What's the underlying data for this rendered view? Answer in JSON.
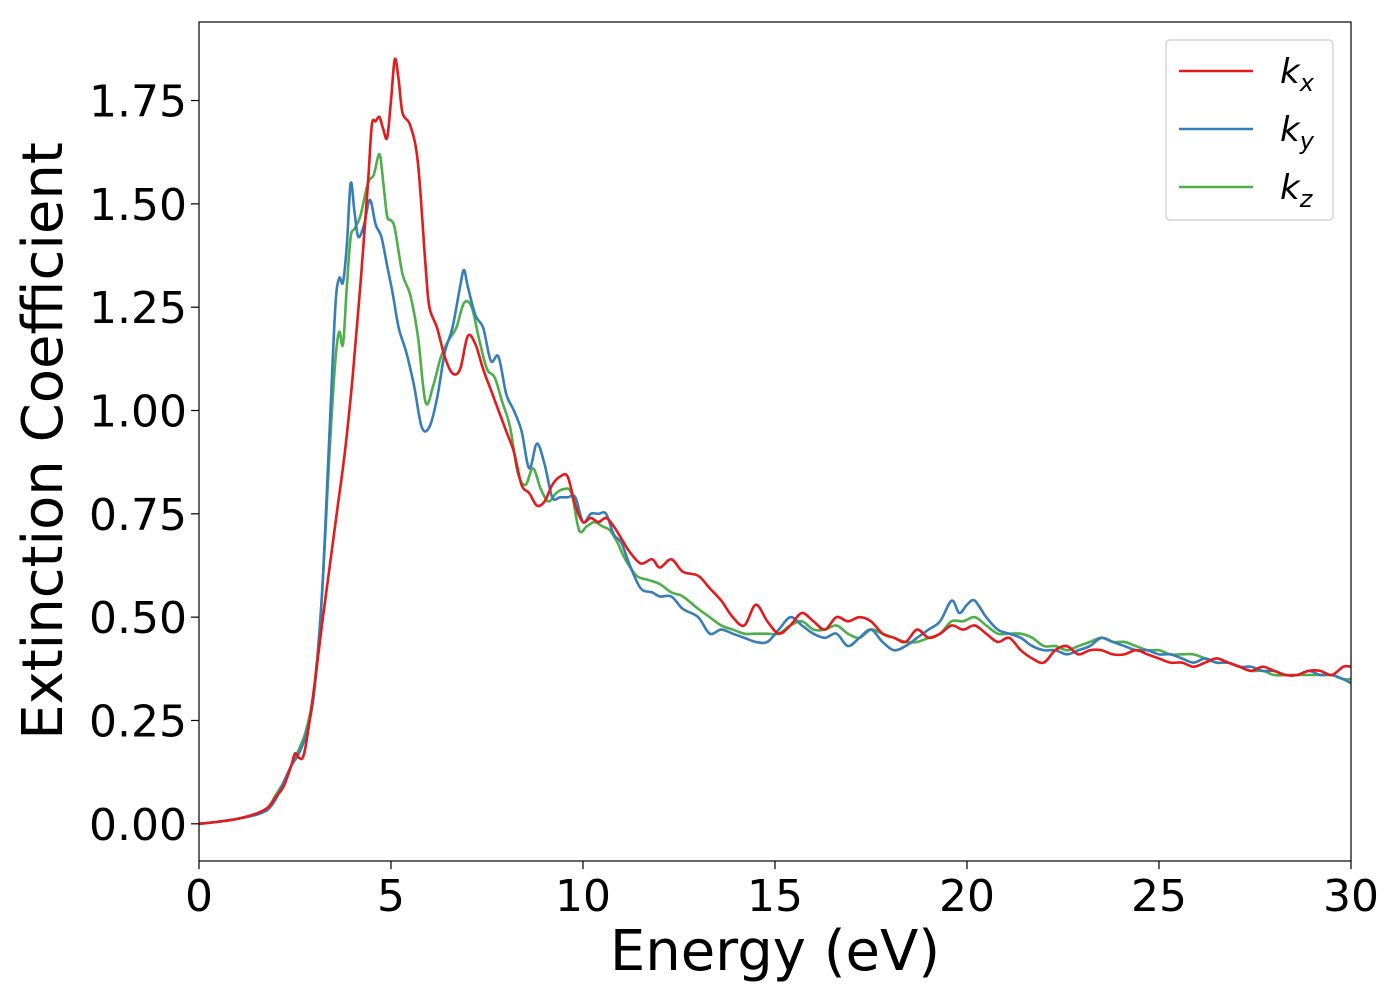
{
  "chart_data": {
    "type": "line",
    "title": "",
    "xlabel": "Energy (eV)",
    "ylabel": "Extinction Coefficient",
    "xlim": [
      0,
      30
    ],
    "ylim": [
      -0.09,
      1.94
    ],
    "xticks": [
      0,
      5,
      10,
      15,
      20,
      25,
      30
    ],
    "xtick_labels": [
      "0",
      "5",
      "10",
      "15",
      "20",
      "25",
      "30"
    ],
    "yticks": [
      0.0,
      0.25,
      0.5,
      0.75,
      1.0,
      1.25,
      1.5,
      1.75
    ],
    "ytick_labels": [
      "0.00",
      "0.25",
      "0.50",
      "0.75",
      "1.00",
      "1.25",
      "1.50",
      "1.75"
    ],
    "grid": false,
    "legend_position": "top-right",
    "series": [
      {
        "name": "k",
        "subscript": "x",
        "color": "#e41a1c",
        "x": [
          0,
          0.5,
          1,
          1.5,
          1.8,
          2.0,
          2.2,
          2.4,
          2.5,
          2.6,
          2.7,
          2.8,
          3.0,
          3.2,
          3.4,
          3.6,
          3.8,
          4.0,
          4.2,
          4.4,
          4.5,
          4.6,
          4.7,
          4.8,
          4.9,
          5.0,
          5.1,
          5.2,
          5.3,
          5.5,
          5.7,
          5.9,
          6.0,
          6.2,
          6.4,
          6.6,
          6.8,
          7.0,
          7.2,
          7.4,
          7.6,
          7.8,
          8.0,
          8.2,
          8.4,
          8.6,
          8.8,
          9.0,
          9.2,
          9.4,
          9.6,
          9.8,
          10.0,
          10.2,
          10.4,
          10.6,
          10.8,
          11.0,
          11.2,
          11.5,
          11.8,
          12.0,
          12.3,
          12.6,
          13.0,
          13.3,
          13.6,
          13.9,
          14.2,
          14.5,
          14.8,
          15.1,
          15.4,
          15.7,
          16.0,
          16.3,
          16.6,
          16.9,
          17.2,
          17.5,
          17.8,
          18.1,
          18.4,
          18.7,
          19.0,
          19.3,
          19.6,
          19.9,
          20.2,
          20.5,
          20.8,
          21.1,
          21.4,
          21.7,
          22.0,
          22.3,
          22.6,
          22.9,
          23.2,
          23.5,
          23.8,
          24.1,
          24.4,
          24.7,
          25.0,
          25.3,
          25.6,
          25.9,
          26.2,
          26.5,
          26.8,
          27.1,
          27.4,
          27.7,
          28.0,
          28.3,
          28.6,
          28.9,
          29.2,
          29.5,
          29.8,
          30.0
        ],
        "y": [
          0.0,
          0.005,
          0.012,
          0.025,
          0.04,
          0.065,
          0.09,
          0.14,
          0.17,
          0.16,
          0.16,
          0.2,
          0.33,
          0.48,
          0.62,
          0.76,
          0.9,
          1.08,
          1.3,
          1.55,
          1.69,
          1.7,
          1.71,
          1.68,
          1.66,
          1.75,
          1.85,
          1.8,
          1.72,
          1.69,
          1.6,
          1.35,
          1.25,
          1.2,
          1.13,
          1.09,
          1.1,
          1.18,
          1.16,
          1.1,
          1.05,
          1.0,
          0.95,
          0.9,
          0.82,
          0.8,
          0.77,
          0.78,
          0.82,
          0.84,
          0.84,
          0.77,
          0.73,
          0.74,
          0.73,
          0.74,
          0.72,
          0.69,
          0.66,
          0.63,
          0.64,
          0.62,
          0.64,
          0.61,
          0.6,
          0.57,
          0.54,
          0.5,
          0.48,
          0.53,
          0.49,
          0.46,
          0.48,
          0.51,
          0.49,
          0.47,
          0.5,
          0.49,
          0.5,
          0.49,
          0.46,
          0.45,
          0.44,
          0.47,
          0.45,
          0.46,
          0.48,
          0.47,
          0.48,
          0.46,
          0.44,
          0.45,
          0.42,
          0.4,
          0.39,
          0.42,
          0.43,
          0.41,
          0.42,
          0.42,
          0.41,
          0.41,
          0.42,
          0.41,
          0.4,
          0.39,
          0.39,
          0.38,
          0.39,
          0.4,
          0.39,
          0.38,
          0.37,
          0.38,
          0.37,
          0.36,
          0.36,
          0.37,
          0.37,
          0.36,
          0.38,
          0.38
        ]
      },
      {
        "name": "k",
        "subscript": "y",
        "color": "#377eb8",
        "x": [
          0,
          0.5,
          1,
          1.5,
          1.8,
          2.0,
          2.2,
          2.4,
          2.6,
          2.8,
          3.0,
          3.2,
          3.4,
          3.55,
          3.65,
          3.75,
          3.85,
          3.95,
          4.05,
          4.15,
          4.3,
          4.45,
          4.6,
          4.75,
          4.9,
          5.05,
          5.2,
          5.4,
          5.6,
          5.8,
          6.0,
          6.2,
          6.4,
          6.6,
          6.8,
          6.9,
          7.0,
          7.2,
          7.4,
          7.6,
          7.8,
          8.0,
          8.2,
          8.4,
          8.6,
          8.8,
          9.0,
          9.2,
          9.4,
          9.6,
          9.8,
          10.0,
          10.2,
          10.4,
          10.6,
          10.8,
          11.0,
          11.2,
          11.5,
          11.8,
          12.0,
          12.3,
          12.6,
          13.0,
          13.3,
          13.6,
          13.9,
          14.2,
          14.5,
          14.8,
          15.1,
          15.4,
          15.7,
          16.0,
          16.3,
          16.6,
          16.9,
          17.2,
          17.5,
          17.8,
          18.1,
          18.4,
          18.7,
          19.0,
          19.3,
          19.6,
          19.8,
          20.0,
          20.2,
          20.5,
          20.8,
          21.1,
          21.4,
          21.7,
          22.0,
          22.3,
          22.6,
          22.9,
          23.2,
          23.5,
          23.8,
          24.1,
          24.4,
          24.7,
          25.0,
          25.3,
          25.6,
          25.9,
          26.2,
          26.5,
          26.8,
          27.1,
          27.4,
          27.7,
          28.0,
          28.3,
          28.6,
          28.9,
          29.2,
          29.5,
          29.8,
          30.0
        ],
        "y": [
          0.0,
          0.005,
          0.012,
          0.022,
          0.035,
          0.06,
          0.1,
          0.14,
          0.17,
          0.22,
          0.32,
          0.55,
          0.95,
          1.25,
          1.32,
          1.31,
          1.4,
          1.55,
          1.48,
          1.42,
          1.45,
          1.51,
          1.45,
          1.42,
          1.35,
          1.28,
          1.2,
          1.14,
          1.06,
          0.96,
          0.96,
          1.03,
          1.14,
          1.2,
          1.3,
          1.34,
          1.3,
          1.23,
          1.2,
          1.12,
          1.13,
          1.04,
          1.0,
          0.95,
          0.86,
          0.92,
          0.87,
          0.79,
          0.79,
          0.79,
          0.79,
          0.73,
          0.75,
          0.75,
          0.75,
          0.7,
          0.68,
          0.63,
          0.57,
          0.56,
          0.55,
          0.55,
          0.52,
          0.5,
          0.46,
          0.47,
          0.46,
          0.45,
          0.44,
          0.44,
          0.47,
          0.5,
          0.48,
          0.46,
          0.45,
          0.46,
          0.43,
          0.45,
          0.47,
          0.44,
          0.42,
          0.43,
          0.45,
          0.47,
          0.49,
          0.54,
          0.51,
          0.53,
          0.54,
          0.5,
          0.47,
          0.46,
          0.45,
          0.43,
          0.42,
          0.42,
          0.41,
          0.42,
          0.43,
          0.45,
          0.44,
          0.43,
          0.42,
          0.42,
          0.41,
          0.41,
          0.4,
          0.39,
          0.4,
          0.39,
          0.39,
          0.38,
          0.38,
          0.37,
          0.37,
          0.36,
          0.36,
          0.37,
          0.36,
          0.36,
          0.35,
          0.34
        ]
      },
      {
        "name": "k",
        "subscript": "z",
        "color": "#4daf4a",
        "x": [
          0,
          0.5,
          1,
          1.5,
          1.8,
          2.0,
          2.2,
          2.4,
          2.6,
          2.8,
          3.0,
          3.2,
          3.4,
          3.55,
          3.65,
          3.75,
          3.85,
          3.95,
          4.05,
          4.2,
          4.4,
          4.55,
          4.7,
          4.8,
          4.9,
          5.0,
          5.1,
          5.3,
          5.5,
          5.7,
          5.9,
          6.1,
          6.3,
          6.5,
          6.7,
          6.9,
          7.1,
          7.3,
          7.5,
          7.7,
          7.9,
          8.1,
          8.3,
          8.5,
          8.7,
          8.9,
          9.1,
          9.3,
          9.5,
          9.7,
          9.9,
          10.1,
          10.3,
          10.5,
          10.7,
          10.9,
          11.1,
          11.4,
          11.7,
          12.0,
          12.3,
          12.6,
          13.0,
          13.3,
          13.6,
          13.9,
          14.2,
          14.5,
          14.8,
          15.1,
          15.4,
          15.7,
          16.0,
          16.3,
          16.6,
          16.9,
          17.2,
          17.5,
          17.8,
          18.1,
          18.4,
          18.7,
          19.0,
          19.3,
          19.6,
          19.9,
          20.2,
          20.5,
          20.8,
          21.1,
          21.4,
          21.7,
          22.0,
          22.3,
          22.6,
          22.9,
          23.2,
          23.5,
          23.8,
          24.1,
          24.4,
          24.7,
          25.0,
          25.3,
          25.6,
          25.9,
          26.2,
          26.5,
          26.8,
          27.1,
          27.4,
          27.7,
          28.0,
          28.3,
          28.6,
          28.9,
          29.2,
          29.5,
          29.8,
          30.0
        ],
        "y": [
          0.0,
          0.005,
          0.012,
          0.024,
          0.04,
          0.07,
          0.1,
          0.14,
          0.18,
          0.23,
          0.33,
          0.55,
          0.9,
          1.12,
          1.19,
          1.16,
          1.3,
          1.42,
          1.44,
          1.47,
          1.55,
          1.57,
          1.62,
          1.55,
          1.47,
          1.46,
          1.44,
          1.33,
          1.28,
          1.18,
          1.02,
          1.06,
          1.13,
          1.17,
          1.2,
          1.26,
          1.25,
          1.17,
          1.1,
          1.08,
          1.02,
          0.96,
          0.85,
          0.82,
          0.86,
          0.81,
          0.78,
          0.8,
          0.81,
          0.8,
          0.71,
          0.72,
          0.73,
          0.72,
          0.71,
          0.68,
          0.64,
          0.6,
          0.59,
          0.58,
          0.56,
          0.55,
          0.52,
          0.5,
          0.48,
          0.47,
          0.46,
          0.46,
          0.46,
          0.46,
          0.48,
          0.49,
          0.47,
          0.47,
          0.48,
          0.46,
          0.45,
          0.47,
          0.46,
          0.45,
          0.44,
          0.44,
          0.45,
          0.46,
          0.49,
          0.49,
          0.5,
          0.48,
          0.46,
          0.46,
          0.46,
          0.45,
          0.43,
          0.43,
          0.42,
          0.43,
          0.44,
          0.45,
          0.44,
          0.44,
          0.43,
          0.42,
          0.42,
          0.41,
          0.41,
          0.41,
          0.4,
          0.39,
          0.39,
          0.38,
          0.37,
          0.37,
          0.36,
          0.36,
          0.36,
          0.36,
          0.36,
          0.36,
          0.35,
          0.35
        ]
      }
    ]
  }
}
